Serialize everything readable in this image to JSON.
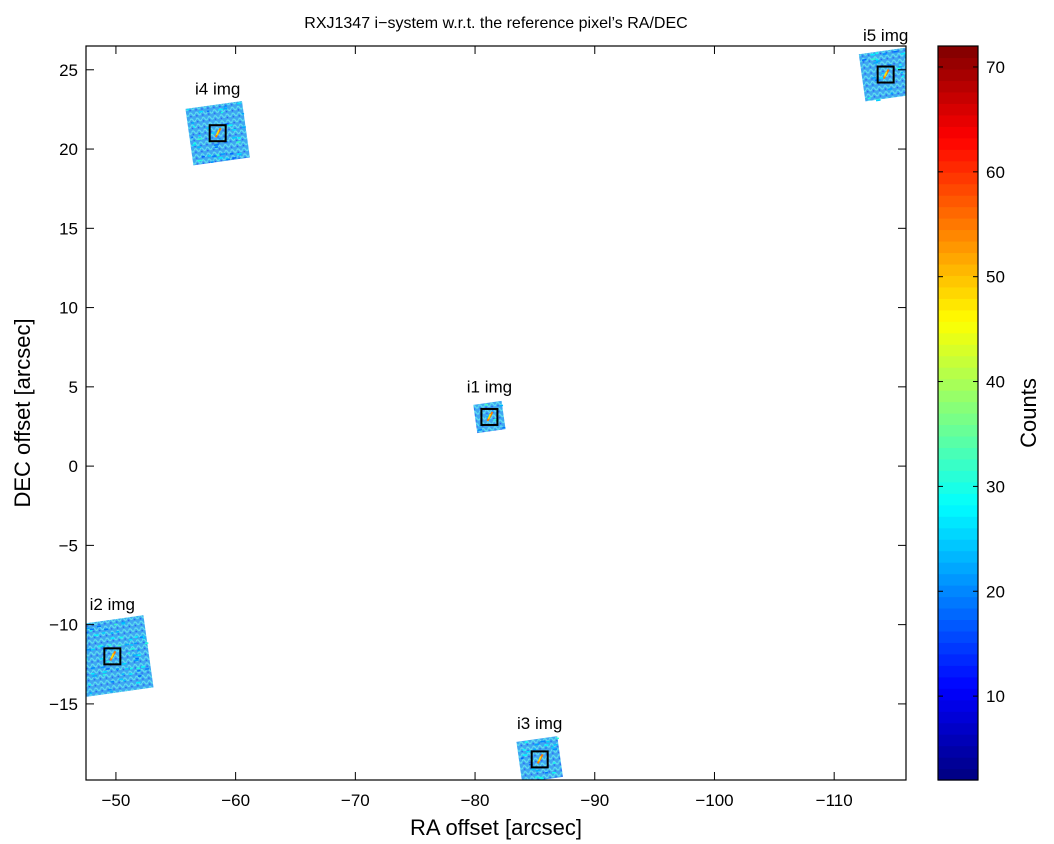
{
  "chart_data": {
    "type": "scatter",
    "title": "RXJ1347 i−system w.r.t. the reference pixel’s RA/DEC",
    "xlabel": "RA offset [arcsec]",
    "ylabel": "DEC offset [arcsec]",
    "xlim": [
      -47.5,
      -116
    ],
    "ylim": [
      -19.8,
      26.5
    ],
    "x_reversed": true,
    "xticks": [
      -50,
      -60,
      -70,
      -80,
      -90,
      -100,
      -110
    ],
    "xtick_labels": [
      "−50",
      "−60",
      "−70",
      "−80",
      "−90",
      "−100",
      "−110"
    ],
    "yticks": [
      25,
      20,
      15,
      10,
      5,
      0,
      -5,
      -10,
      -15
    ],
    "ytick_labels": [
      "25",
      "20",
      "15",
      "10",
      "5",
      "0",
      "−5",
      "−10",
      "−15"
    ],
    "grid": false,
    "images": [
      {
        "label": "i1 img",
        "ra": -81.2,
        "dec": 3.1,
        "size": 1.8
      },
      {
        "label": "i2 img",
        "ra": -49.7,
        "dec": -12.0,
        "size": 4.6
      },
      {
        "label": "i3 img",
        "ra": -85.4,
        "dec": -18.5,
        "size": 2.6
      },
      {
        "label": "i4 img",
        "ra": -58.5,
        "dec": 21.0,
        "size": 3.6
      },
      {
        "label": "i5 img",
        "ra": -114.3,
        "dec": 24.7,
        "size": 3.0
      }
    ],
    "colorbar": {
      "label": "Counts",
      "min": 2,
      "max": 72,
      "ticks": [
        10,
        20,
        30,
        40,
        50,
        60,
        70
      ],
      "colormap": "jet",
      "colors": {
        "dark_blue": "#00008f",
        "blue": "#0000ff",
        "cyan": "#00ffff",
        "yellow": "#ffff00",
        "red": "#ff0000",
        "dark_red": "#800000"
      }
    }
  }
}
